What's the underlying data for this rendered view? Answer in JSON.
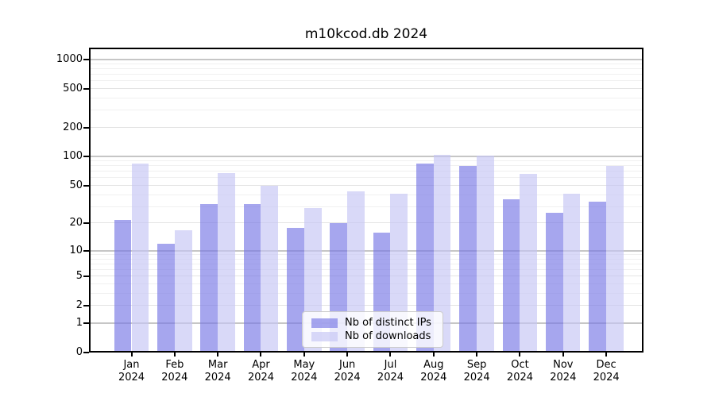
{
  "title": "m10kcod.db 2024",
  "chart_data": {
    "type": "bar",
    "title": "m10kcod.db 2024",
    "categories": [
      "Jan",
      "Feb",
      "Mar",
      "Apr",
      "May",
      "Jun",
      "Jul",
      "Aug",
      "Sep",
      "Oct",
      "Nov",
      "Dec"
    ],
    "year_label": "2024",
    "series": [
      {
        "name": "Nb of distinct IPs",
        "color": "#a7a7ee",
        "color_rgba": "rgba(119,119,229,0.65)",
        "values": [
          22,
          12,
          32,
          32,
          18,
          20,
          16,
          85,
          81,
          36,
          26,
          34
        ]
      },
      {
        "name": "Nb of downloads",
        "color": "#d8d8f7",
        "color_rgba": "rgba(196,196,244,0.65)",
        "values": [
          85,
          17,
          68,
          50,
          29,
          44,
          41,
          104,
          103,
          66,
          41,
          80
        ]
      }
    ],
    "yscale": "log1p",
    "ylim": [
      0,
      1324
    ],
    "yticks": [
      0,
      1,
      2,
      5,
      10,
      20,
      50,
      100,
      200,
      500,
      1000
    ],
    "grid": true,
    "legend_position": "lower-center",
    "axis_color": "#000000",
    "grid_decade_color": "#c6c6c6",
    "grid_minor_color": "#f0f0f0",
    "background_color": "#ffffff"
  }
}
